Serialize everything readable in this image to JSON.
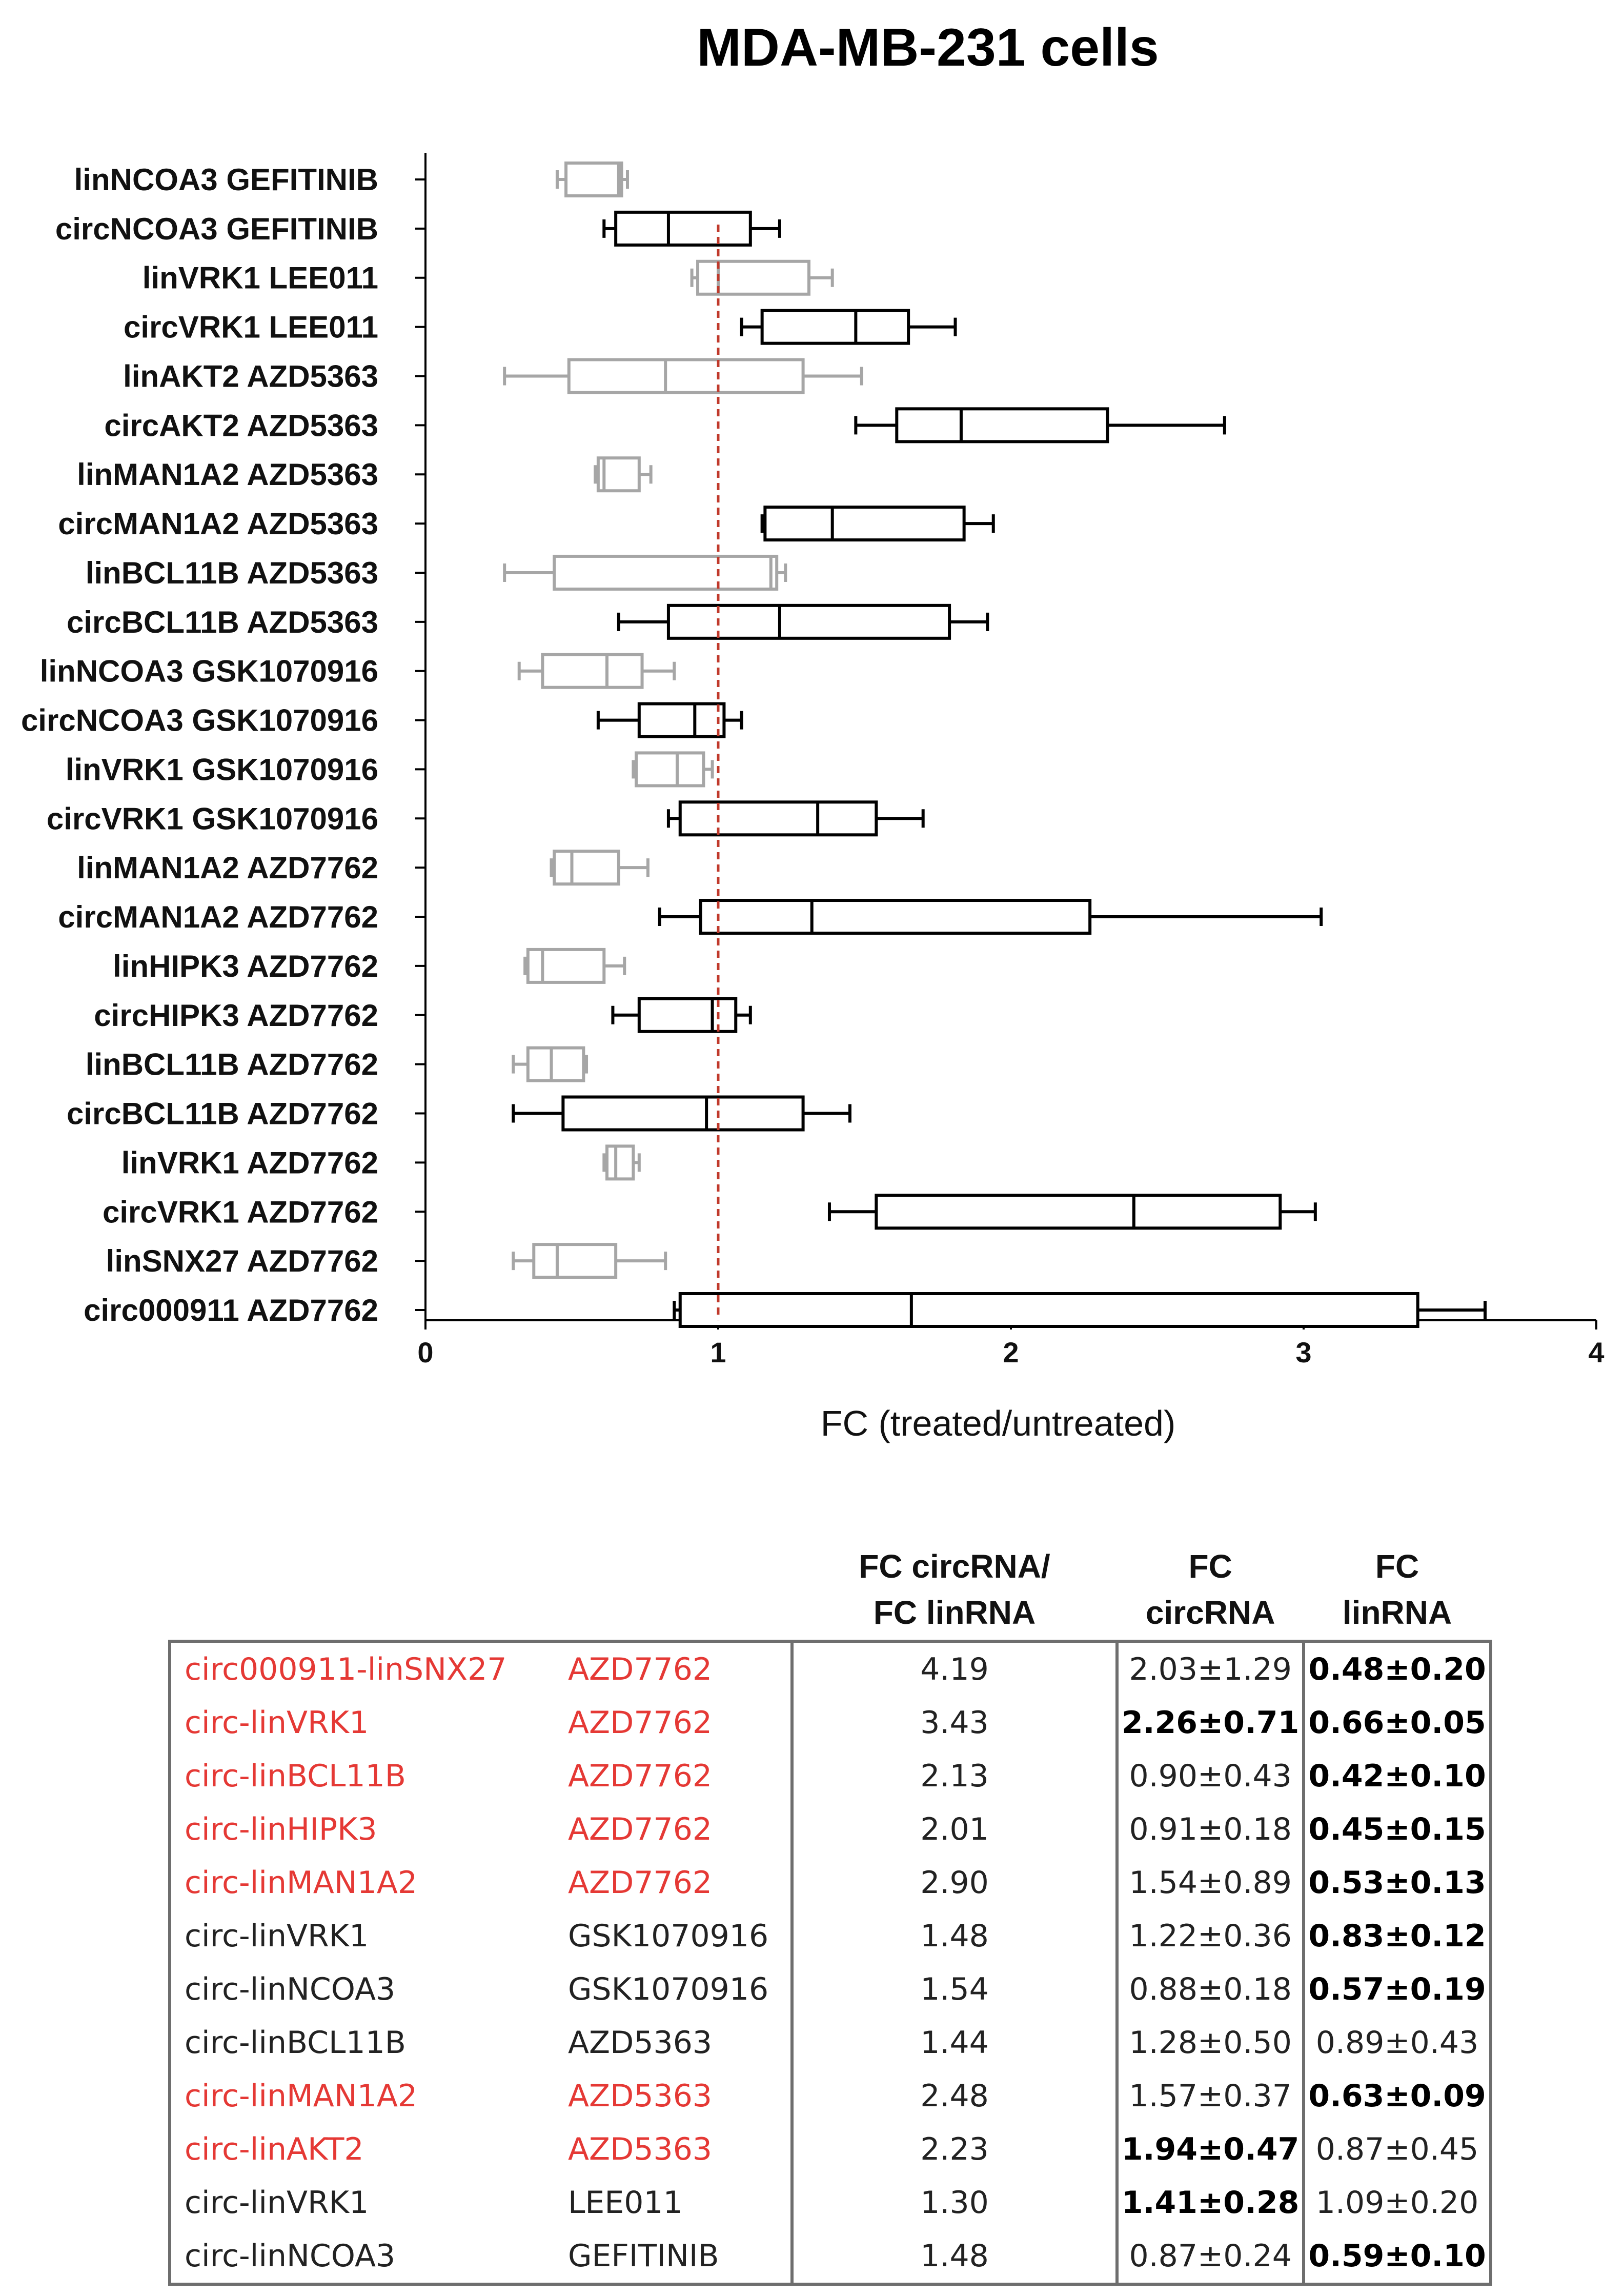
{
  "colors": {
    "circ": "#000000",
    "lin": "#a6a6a6",
    "reference_line": "#c0392b",
    "highlight_text": "#e53935"
  },
  "chart_data": {
    "type": "boxplot",
    "title": "MDA-MB-231 cells",
    "xlabel": "FC (treated/untreated)",
    "ylabel": "",
    "xlim": [
      0,
      4
    ],
    "xticks": [
      0,
      1,
      2,
      3,
      4
    ],
    "reference_line": 1,
    "grid": false,
    "categories": [
      {
        "label": "linNCOA3 GEFITINIB",
        "kind": "lin",
        "min": 0.45,
        "q1": 0.48,
        "median": 0.66,
        "q3": 0.67,
        "max": 0.69
      },
      {
        "label": "circNCOA3 GEFITINIB",
        "kind": "circ",
        "min": 0.61,
        "q1": 0.65,
        "median": 0.83,
        "q3": 1.11,
        "max": 1.21
      },
      {
        "label": "linVRK1 LEE011",
        "kind": "lin",
        "min": 0.91,
        "q1": 0.93,
        "median": 1.0,
        "q3": 1.31,
        "max": 1.39
      },
      {
        "label": "circVRK1 LEE011",
        "kind": "circ",
        "min": 1.08,
        "q1": 1.15,
        "median": 1.47,
        "q3": 1.65,
        "max": 1.81
      },
      {
        "label": "linAKT2 AZD5363",
        "kind": "lin",
        "min": 0.27,
        "q1": 0.49,
        "median": 0.82,
        "q3": 1.29,
        "max": 1.49
      },
      {
        "label": "circAKT2 AZD5363",
        "kind": "circ",
        "min": 1.47,
        "q1": 1.61,
        "median": 1.83,
        "q3": 2.33,
        "max": 2.73
      },
      {
        "label": "linMAN1A2 AZD5363",
        "kind": "lin",
        "min": 0.58,
        "q1": 0.59,
        "median": 0.61,
        "q3": 0.73,
        "max": 0.77
      },
      {
        "label": "circMAN1A2 AZD5363",
        "kind": "circ",
        "min": 1.15,
        "q1": 1.16,
        "median": 1.39,
        "q3": 1.84,
        "max": 1.94
      },
      {
        "label": "linBCL11B AZD5363",
        "kind": "lin",
        "min": 0.27,
        "q1": 0.44,
        "median": 1.18,
        "q3": 1.2,
        "max": 1.23
      },
      {
        "label": "circBCL11B AZD5363",
        "kind": "circ",
        "min": 0.66,
        "q1": 0.83,
        "median": 1.21,
        "q3": 1.79,
        "max": 1.92
      },
      {
        "label": "linNCOA3 GSK1070916",
        "kind": "lin",
        "min": 0.32,
        "q1": 0.4,
        "median": 0.62,
        "q3": 0.74,
        "max": 0.85
      },
      {
        "label": "circNCOA3 GSK1070916",
        "kind": "circ",
        "min": 0.59,
        "q1": 0.73,
        "median": 0.92,
        "q3": 1.02,
        "max": 1.08
      },
      {
        "label": "linVRK1 GSK1070916",
        "kind": "lin",
        "min": 0.71,
        "q1": 0.72,
        "median": 0.86,
        "q3": 0.95,
        "max": 0.98
      },
      {
        "label": "circVRK1 GSK1070916",
        "kind": "circ",
        "min": 0.83,
        "q1": 0.87,
        "median": 1.34,
        "q3": 1.54,
        "max": 1.7
      },
      {
        "label": "linMAN1A2 AZD7762",
        "kind": "lin",
        "min": 0.43,
        "q1": 0.44,
        "median": 0.5,
        "q3": 0.66,
        "max": 0.76
      },
      {
        "label": "circMAN1A2 AZD7762",
        "kind": "circ",
        "min": 0.8,
        "q1": 0.94,
        "median": 1.32,
        "q3": 2.27,
        "max": 3.06
      },
      {
        "label": "linHIPK3 AZD7762",
        "kind": "lin",
        "min": 0.34,
        "q1": 0.35,
        "median": 0.4,
        "q3": 0.61,
        "max": 0.68
      },
      {
        "label": "circHIPK3 AZD7762",
        "kind": "circ",
        "min": 0.64,
        "q1": 0.73,
        "median": 0.98,
        "q3": 1.06,
        "max": 1.11
      },
      {
        "label": "linBCL11B AZD7762",
        "kind": "lin",
        "min": 0.3,
        "q1": 0.35,
        "median": 0.43,
        "q3": 0.54,
        "max": 0.55
      },
      {
        "label": "circBCL11B AZD7762",
        "kind": "circ",
        "min": 0.3,
        "q1": 0.47,
        "median": 0.96,
        "q3": 1.29,
        "max": 1.45
      },
      {
        "label": "linVRK1 AZD7762",
        "kind": "lin",
        "min": 0.61,
        "q1": 0.62,
        "median": 0.65,
        "q3": 0.71,
        "max": 0.73
      },
      {
        "label": "circVRK1 AZD7762",
        "kind": "circ",
        "min": 1.38,
        "q1": 1.54,
        "median": 2.42,
        "q3": 2.92,
        "max": 3.04
      },
      {
        "label": "linSNX27 AZD7762",
        "kind": "lin",
        "min": 0.3,
        "q1": 0.37,
        "median": 0.45,
        "q3": 0.65,
        "max": 0.82
      },
      {
        "label": "circ000911 AZD7762",
        "kind": "circ",
        "min": 0.85,
        "q1": 0.87,
        "median": 1.66,
        "q3": 3.39,
        "max": 3.62
      }
    ]
  },
  "table": {
    "headers": [
      "",
      "",
      "FC circRNA/\nFC linRNA",
      "FC\ncircRNA",
      "FC\nlinRNA"
    ],
    "rows": [
      {
        "pair": "circ000911-linSNX27",
        "drug": "AZD7762",
        "ratio": "4.19",
        "circ": "2.03±1.29",
        "lin": "0.48±0.20",
        "highlight": true,
        "circ_bold": false,
        "lin_bold": true
      },
      {
        "pair": "circ-linVRK1",
        "drug": "AZD7762",
        "ratio": "3.43",
        "circ": "2.26±0.71",
        "lin": "0.66±0.05",
        "highlight": true,
        "circ_bold": true,
        "lin_bold": true
      },
      {
        "pair": "circ-linBCL11B",
        "drug": "AZD7762",
        "ratio": "2.13",
        "circ": "0.90±0.43",
        "lin": "0.42±0.10",
        "highlight": true,
        "circ_bold": false,
        "lin_bold": true
      },
      {
        "pair": "circ-linHIPK3",
        "drug": "AZD7762",
        "ratio": "2.01",
        "circ": "0.91±0.18",
        "lin": "0.45±0.15",
        "highlight": true,
        "circ_bold": false,
        "lin_bold": true
      },
      {
        "pair": "circ-linMAN1A2",
        "drug": "AZD7762",
        "ratio": "2.90",
        "circ": "1.54±0.89",
        "lin": "0.53±0.13",
        "highlight": true,
        "circ_bold": false,
        "lin_bold": true
      },
      {
        "pair": "circ-linVRK1",
        "drug": "GSK1070916",
        "ratio": "1.48",
        "circ": "1.22±0.36",
        "lin": "0.83±0.12",
        "highlight": false,
        "circ_bold": false,
        "lin_bold": true
      },
      {
        "pair": "circ-linNCOA3",
        "drug": "GSK1070916",
        "ratio": "1.54",
        "circ": "0.88±0.18",
        "lin": "0.57±0.19",
        "highlight": false,
        "circ_bold": false,
        "lin_bold": true
      },
      {
        "pair": "circ-linBCL11B",
        "drug": "AZD5363",
        "ratio": "1.44",
        "circ": "1.28±0.50",
        "lin": "0.89±0.43",
        "highlight": false,
        "circ_bold": false,
        "lin_bold": false
      },
      {
        "pair": "circ-linMAN1A2",
        "drug": "AZD5363",
        "ratio": "2.48",
        "circ": "1.57±0.37",
        "lin": "0.63±0.09",
        "highlight": true,
        "circ_bold": false,
        "lin_bold": true
      },
      {
        "pair": "circ-linAKT2",
        "drug": "AZD5363",
        "ratio": "2.23",
        "circ": "1.94±0.47",
        "lin": "0.87±0.45",
        "highlight": true,
        "circ_bold": true,
        "lin_bold": false
      },
      {
        "pair": "circ-linVRK1",
        "drug": "LEE011",
        "ratio": "1.30",
        "circ": "1.41±0.28",
        "lin": "1.09±0.20",
        "highlight": false,
        "circ_bold": true,
        "lin_bold": false
      },
      {
        "pair": "circ-linNCOA3",
        "drug": "GEFITINIB",
        "ratio": "1.48",
        "circ": "0.87±0.24",
        "lin": "0.59±0.10",
        "highlight": false,
        "circ_bold": false,
        "lin_bold": true
      }
    ]
  }
}
